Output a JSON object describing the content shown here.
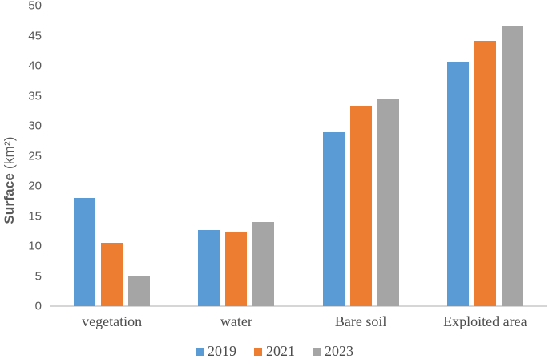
{
  "chart_data": {
    "type": "bar",
    "title": "",
    "categories": [
      "vegetation",
      "water",
      "Bare soil",
      "Exploited area"
    ],
    "series": [
      {
        "name": "2019",
        "color": "#5B9BD5",
        "values": [
          18.0,
          12.7,
          28.9,
          40.7
        ]
      },
      {
        "name": "2021",
        "color": "#ED7D31",
        "values": [
          10.5,
          12.3,
          33.4,
          44.2
        ]
      },
      {
        "name": "2023",
        "color": "#A5A5A5",
        "values": [
          5.0,
          14.0,
          34.5,
          46.5
        ]
      }
    ],
    "xlabel": "",
    "ylabel_bold": "Surface",
    "ylabel_unit": " (km²)",
    "ylim": [
      0,
      50
    ],
    "yticks": [
      0,
      5,
      10,
      15,
      20,
      25,
      30,
      35,
      40,
      45,
      50
    ],
    "grid": false,
    "legend_position": "bottom"
  },
  "colors": {
    "tick_text": "#595959",
    "category_text": "#4d4d4d",
    "axis_line": "#d6d6d6",
    "background": "#ffffff"
  }
}
